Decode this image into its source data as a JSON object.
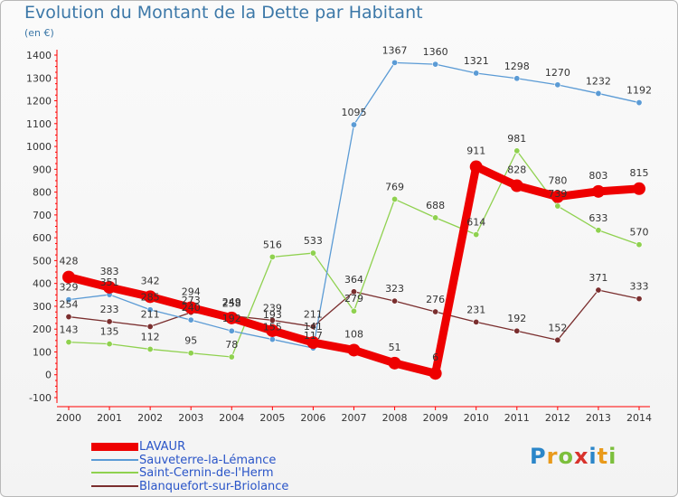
{
  "header": {
    "title": "Evolution du Montant de la Dette par Habitant",
    "subtitle": "(en €)"
  },
  "logo": {
    "letters": [
      "P",
      "r",
      "o",
      "x",
      "i",
      "t",
      "i"
    ],
    "colors": [
      "#2b86c9",
      "#e99a1b",
      "#7cbf3c",
      "#d8322b",
      "#2b86c9",
      "#e99a1b",
      "#7cbf3c"
    ]
  },
  "chart_data": {
    "type": "line",
    "title": "Evolution du Montant de la Dette par Habitant",
    "subtitle": "(en €)",
    "xlabel": "",
    "ylabel": "",
    "x": [
      2000,
      2001,
      2002,
      2003,
      2004,
      2005,
      2006,
      2007,
      2008,
      2009,
      2010,
      2011,
      2012,
      2013,
      2014
    ],
    "ylim": [
      -100,
      1400
    ],
    "yticks": [
      -100,
      0,
      100,
      200,
      300,
      400,
      500,
      600,
      700,
      800,
      900,
      1000,
      1100,
      1200,
      1300,
      1400
    ],
    "grid": false,
    "legend_position": "bottom-left",
    "series": [
      {
        "name": "LAVAUR",
        "color": "#ee0000",
        "values": [
          428,
          383,
          342,
          294,
          249,
          193,
          141,
          108,
          51,
          6,
          911,
          828,
          780,
          803,
          815
        ]
      },
      {
        "name": "Sauveterre-la-Lémance",
        "color": "#5b9bd5",
        "values": [
          329,
          351,
          285,
          240,
          192,
          155,
          117,
          1095,
          1367,
          1360,
          1321,
          1298,
          1270,
          1232,
          1192
        ]
      },
      {
        "name": "Saint-Cernin-de-l'Herm",
        "color": "#8fd14f",
        "values": [
          143,
          135,
          112,
          95,
          78,
          516,
          533,
          279,
          769,
          688,
          614,
          981,
          739,
          633,
          570
        ]
      },
      {
        "name": "Blanquefort-sur-Briolance",
        "color": "#7a2e2e",
        "values": [
          254,
          233,
          211,
          273,
          258,
          239,
          211,
          364,
          323,
          276,
          231,
          192,
          152,
          371,
          333
        ]
      }
    ]
  }
}
